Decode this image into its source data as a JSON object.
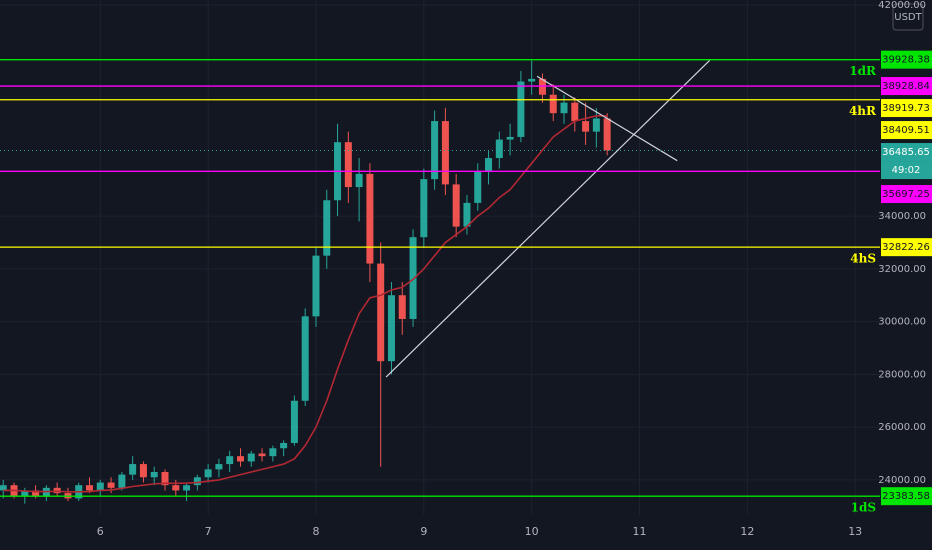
{
  "chart_data": {
    "type": "candlestick",
    "currency": "USDT",
    "countdown": "49:02",
    "x": [
      5.1,
      5.2,
      5.3,
      5.4,
      5.5,
      5.6,
      5.7,
      5.8,
      5.9,
      6.0,
      6.1,
      6.2,
      6.3,
      6.4,
      6.5,
      6.6,
      6.7,
      6.8,
      6.9,
      7.0,
      7.1,
      7.2,
      7.3,
      7.4,
      7.5,
      7.6,
      7.7,
      7.8,
      7.9,
      8.0,
      8.1,
      8.2,
      8.3,
      8.4,
      8.5,
      8.6,
      8.7,
      8.8,
      8.9,
      9.0,
      9.1,
      9.2,
      9.3,
      9.4,
      9.5,
      9.6,
      9.7,
      9.8,
      9.9,
      10.0,
      10.1,
      10.2,
      10.3,
      10.4,
      10.5,
      10.6,
      10.7
    ],
    "open": [
      23600,
      23800,
      23400,
      23600,
      23400,
      23700,
      23500,
      23300,
      23800,
      23600,
      23900,
      23700,
      24200,
      24600,
      24100,
      24300,
      23800,
      23600,
      23800,
      24100,
      24400,
      24600,
      24900,
      24700,
      25000,
      24900,
      25200,
      25400,
      27000,
      30200,
      32500,
      34600,
      36800,
      35100,
      35600,
      32200,
      28500,
      31000,
      30100,
      33200,
      35400,
      37600,
      35200,
      33600,
      34500,
      35700,
      36200,
      36900,
      37000,
      39100,
      39200,
      38600,
      37900,
      38300,
      37600,
      37200,
      37700
    ],
    "high": [
      24000,
      23900,
      23700,
      23800,
      23800,
      23900,
      23700,
      23900,
      24100,
      24000,
      24100,
      24300,
      24900,
      24700,
      24500,
      24400,
      24000,
      23900,
      24200,
      24600,
      24800,
      25100,
      25200,
      25100,
      25200,
      25300,
      25500,
      27200,
      30500,
      32800,
      35000,
      37500,
      37200,
      36200,
      36000,
      33000,
      31500,
      31500,
      33500,
      35800,
      38000,
      38100,
      35600,
      34800,
      36000,
      36500,
      37200,
      37500,
      39500,
      39900,
      39400,
      39000,
      38600,
      38500,
      38300,
      38100,
      37900
    ],
    "low": [
      23300,
      23300,
      23100,
      23300,
      23200,
      23400,
      23200,
      23200,
      23500,
      23400,
      23500,
      23600,
      24000,
      23900,
      23800,
      23600,
      23400,
      23200,
      23600,
      23900,
      24100,
      24300,
      24500,
      24500,
      24700,
      24700,
      24900,
      25300,
      26800,
      29800,
      32000,
      34000,
      34500,
      33800,
      31500,
      24500,
      28000,
      29500,
      29800,
      32800,
      35000,
      34800,
      33200,
      33300,
      34200,
      35200,
      35800,
      36300,
      36800,
      38600,
      38300,
      37600,
      37500,
      37200,
      36700,
      36600,
      36300
    ],
    "close": [
      23800,
      23400,
      23600,
      23400,
      23700,
      23500,
      23300,
      23800,
      23600,
      23900,
      23700,
      24200,
      24600,
      24100,
      24300,
      23800,
      23600,
      23800,
      24100,
      24400,
      24600,
      24900,
      24700,
      25000,
      24900,
      25200,
      25400,
      27000,
      30200,
      32500,
      34600,
      36800,
      35100,
      35600,
      32200,
      28500,
      31000,
      30100,
      33200,
      35400,
      37600,
      35200,
      33600,
      34500,
      35700,
      36200,
      36900,
      37000,
      39100,
      39200,
      38600,
      37900,
      38300,
      37600,
      37200,
      37700,
      36490
    ],
    "ma": [
      23600,
      23600,
      23580,
      23560,
      23560,
      23570,
      23550,
      23550,
      23560,
      23600,
      23620,
      23680,
      23750,
      23800,
      23850,
      23870,
      23870,
      23880,
      23900,
      23950,
      24000,
      24100,
      24200,
      24300,
      24400,
      24500,
      24600,
      24800,
      25300,
      26000,
      27000,
      28200,
      29300,
      30300,
      30900,
      31000,
      31200,
      31300,
      31600,
      32000,
      32500,
      33000,
      33300,
      33600,
      34000,
      34300,
      34700,
      35000,
      35500,
      36000,
      36500,
      37000,
      37300,
      37600,
      37700,
      37800,
      37800
    ],
    "ma_color": "#b22833",
    "up_color": "#26a69a",
    "down_color": "#ef5350",
    "levels": [
      {
        "value": 39928.38,
        "color": "#00e600",
        "tag": "1dR"
      },
      {
        "value": 38928.84,
        "color": "#ff00ff"
      },
      {
        "value": 38409.51,
        "color": "#ffff00",
        "tag": "4hR"
      },
      {
        "value": 35697.25,
        "color": "#ff00ff"
      },
      {
        "value": 32822.26,
        "color": "#ffff00",
        "tag": "4hS"
      },
      {
        "value": 23383.58,
        "color": "#00e600",
        "tag": "1dS"
      }
    ],
    "marker_labels": [
      {
        "value": 38919.73,
        "color": "#ffff00"
      }
    ],
    "last_price": {
      "value": 36485.65,
      "color": "#26a69a"
    },
    "trendlines": [
      {
        "x": [
          8.65,
          11.65
        ],
        "y": [
          27900,
          39900
        ]
      },
      {
        "x": [
          10.05,
          11.35
        ],
        "y": [
          39300,
          36100
        ]
      }
    ],
    "xlim": [
      5.07,
      13.23
    ],
    "ylim": [
      22670,
      42190
    ],
    "xticks": [
      6,
      7,
      8,
      9,
      10,
      11,
      12,
      13
    ],
    "yticks": [
      {
        "value": 24000,
        "label": "24000.00"
      },
      {
        "value": 26000,
        "label": "26000.00"
      },
      {
        "value": 28000,
        "label": "28000.00"
      },
      {
        "value": 30000,
        "label": "30000.00"
      },
      {
        "value": 32000,
        "label": "32000.00"
      },
      {
        "value": 34000,
        "label": "34000.00"
      },
      {
        "value": 42000,
        "label": "42000.00"
      }
    ],
    "grid": true
  }
}
